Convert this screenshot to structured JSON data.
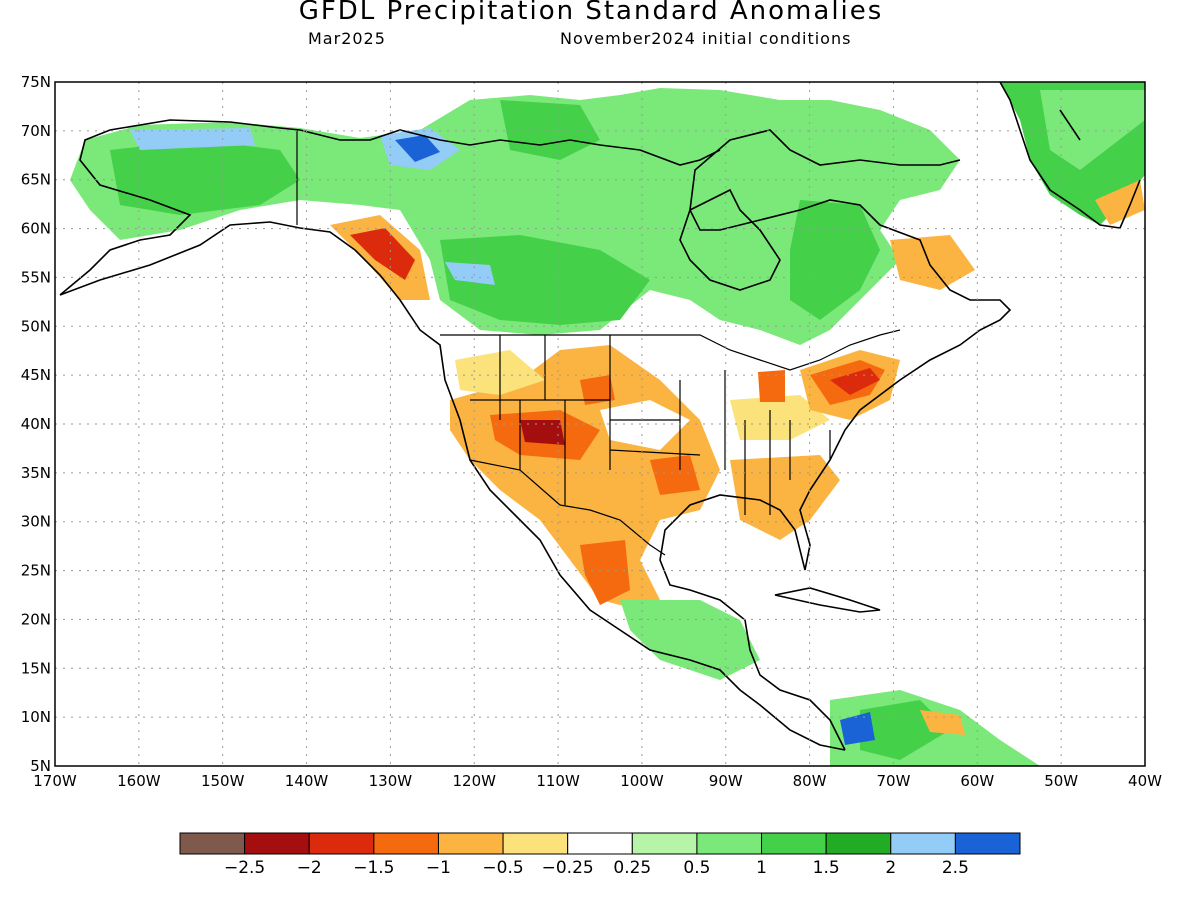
{
  "header": {
    "title": "GFDL Precipitation Standard Anomalies",
    "valid_month": "Mar2025",
    "init_conditions": "November2024 initial conditions"
  },
  "axes": {
    "lat_labels": [
      "75N",
      "70N",
      "65N",
      "60N",
      "55N",
      "50N",
      "45N",
      "40N",
      "35N",
      "30N",
      "25N",
      "20N",
      "15N",
      "10N",
      "5N"
    ],
    "lon_labels": [
      "170W",
      "160W",
      "150W",
      "140W",
      "130W",
      "120W",
      "110W",
      "100W",
      "90W",
      "80W",
      "70W",
      "60W",
      "50W",
      "40W"
    ],
    "lat_range": [
      5,
      75
    ],
    "lon_range": [
      -170,
      -40
    ],
    "grid": "dotted"
  },
  "colorbar": {
    "colors": [
      "#7f5a4c",
      "#a50e0e",
      "#dc2a0c",
      "#f5690f",
      "#fbb441",
      "#fbe27b",
      "#ffffff",
      "#b6f5a8",
      "#7be87a",
      "#45d04a",
      "#22ab24",
      "#93cdf7",
      "#1a63d6"
    ],
    "labels": [
      "−2.5",
      "−2",
      "−1.5",
      "−1",
      "−0.5",
      "−0.25",
      "0.25",
      "0.5",
      "1",
      "1.5",
      "2",
      "2.5"
    ]
  }
}
